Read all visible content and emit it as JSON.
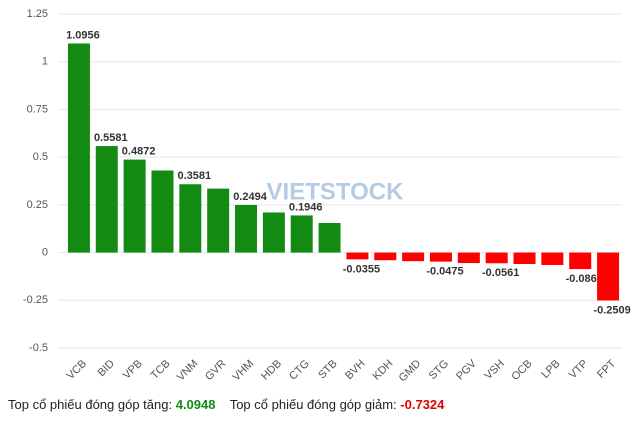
{
  "chart_data": {
    "type": "bar",
    "categories": [
      "VCB",
      "BID",
      "VPB",
      "TCB",
      "VNM",
      "GVR",
      "VHM",
      "HDB",
      "CTG",
      "STB",
      "BVH",
      "KDH",
      "GMD",
      "STG",
      "PGV",
      "VSH",
      "OCB",
      "LPB",
      "VTP",
      "FPT"
    ],
    "values": [
      1.0956,
      0.5581,
      0.4872,
      0.43,
      0.3581,
      0.335,
      0.2494,
      0.21,
      0.1946,
      0.155,
      -0.0355,
      -0.04,
      -0.045,
      -0.0475,
      -0.055,
      -0.0561,
      -0.06,
      -0.065,
      -0.0865,
      -0.2509
    ],
    "value_labels": [
      "1.0956",
      "0.5581",
      "0.4872",
      null,
      "0.3581",
      null,
      "0.2494",
      null,
      "0.1946",
      null,
      "-0.0355",
      null,
      null,
      "-0.0475",
      null,
      "-0.0561",
      null,
      null,
      "-0.0865",
      "-0.2509"
    ],
    "positive_color": "#138b13",
    "negative_color": "#ff0000",
    "ylim": [
      -0.5,
      1.25
    ],
    "yticks": [
      -0.5,
      -0.25,
      0,
      0.25,
      0.5,
      0.75,
      1,
      1.25
    ],
    "grid": true,
    "watermark": "VIETSTOCK"
  },
  "footer": {
    "up_label": "Top cổ phiếu đóng góp tăng:",
    "up_value": 4.0948,
    "down_label": "Top cổ phiếu đóng góp giảm:",
    "down_value": -0.7324
  }
}
